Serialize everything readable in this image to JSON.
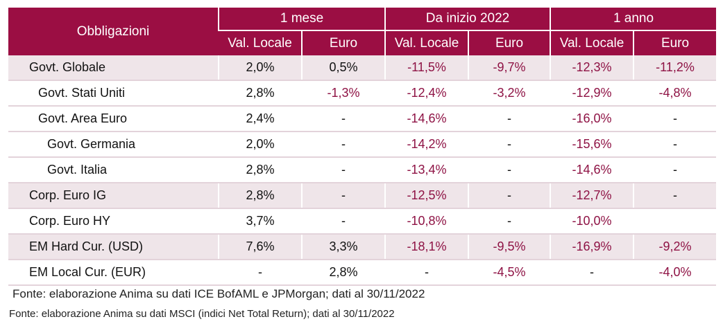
{
  "table": {
    "corner_label": "Obbligazioni",
    "groups": [
      "1 mese",
      "Da inizio 2022",
      "1 anno"
    ],
    "subheaders": [
      "Val. Locale",
      "Euro",
      "Val. Locale",
      "Euro",
      "Val. Locale",
      "Euro"
    ],
    "rows": [
      {
        "label": "Govt. Globale",
        "values": [
          "2,0%",
          "0,5%",
          "-11,5%",
          "-9,7%",
          "-12,3%",
          "-11,2%"
        ]
      },
      {
        "label": "Govt. Stati Uniti",
        "values": [
          "2,8%",
          "-1,3%",
          "-12,4%",
          "-3,2%",
          "-12,9%",
          "-4,8%"
        ]
      },
      {
        "label": "Govt. Area Euro",
        "values": [
          "2,4%",
          "-",
          "-14,6%",
          "-",
          "-16,0%",
          "-"
        ]
      },
      {
        "label": "Govt. Germania",
        "values": [
          "2,0%",
          "-",
          "-14,2%",
          "-",
          "-15,6%",
          "-"
        ]
      },
      {
        "label": "Govt. Italia",
        "values": [
          "2,8%",
          "-",
          "-13,4%",
          "-",
          "-14,6%",
          "-"
        ]
      },
      {
        "label": "Corp. Euro IG",
        "values": [
          "2,8%",
          "-",
          "-12,5%",
          "-",
          "-12,7%",
          "-"
        ]
      },
      {
        "label": "Corp. Euro HY",
        "values": [
          "3,7%",
          "-",
          "-10,8%",
          "-",
          "-10,0%",
          ""
        ]
      },
      {
        "label": "EM Hard Cur. (USD)",
        "values": [
          "7,6%",
          "3,3%",
          "-18,1%",
          "-9,5%",
          "-16,9%",
          "-9,2%"
        ]
      },
      {
        "label": "EM Local Cur. (EUR)",
        "values": [
          "-",
          "2,8%",
          "-",
          "-4,5%",
          "-",
          "-4,0%"
        ]
      }
    ]
  },
  "notes": {
    "source_1": "Fonte: elaborazione Anima su dati ICE BofAML e JPMorgan; dati al 30/11/2022",
    "source_2": "Fonte: elaborazione Anima su dati MSCI (indici Net Total Return); dati al 30/11/2022"
  },
  "colors": {
    "header_bg": "#9b0e43",
    "row_shade": "#efe5e9",
    "negative_text": "#8e1244"
  }
}
